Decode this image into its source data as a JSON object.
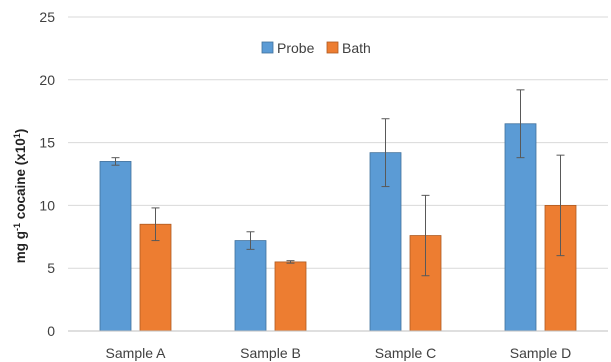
{
  "chart_data": {
    "type": "bar",
    "categories": [
      "Sample A",
      "Sample B",
      "Sample C",
      "Sample D"
    ],
    "series": [
      {
        "name": "Probe",
        "values": [
          13.5,
          7.2,
          14.2,
          16.5
        ],
        "errors": [
          0.3,
          0.7,
          2.7,
          2.7
        ],
        "color": "#5B9BD5"
      },
      {
        "name": "Bath",
        "values": [
          8.5,
          5.5,
          7.6,
          10.0
        ],
        "errors": [
          1.3,
          0.1,
          3.2,
          4.0
        ],
        "color": "#ED7D31"
      }
    ],
    "title": "",
    "xlabel": "",
    "ylabel": {
      "prefix": "mg g",
      "sup1": "-1",
      "mid": " cocaine (x10",
      "sup2": "1",
      "suffix": ")"
    },
    "ylim": [
      0,
      25
    ],
    "yticks": [
      "0",
      "5",
      "10",
      "15",
      "20",
      "25"
    ],
    "grid": true,
    "legend": "top-center"
  }
}
